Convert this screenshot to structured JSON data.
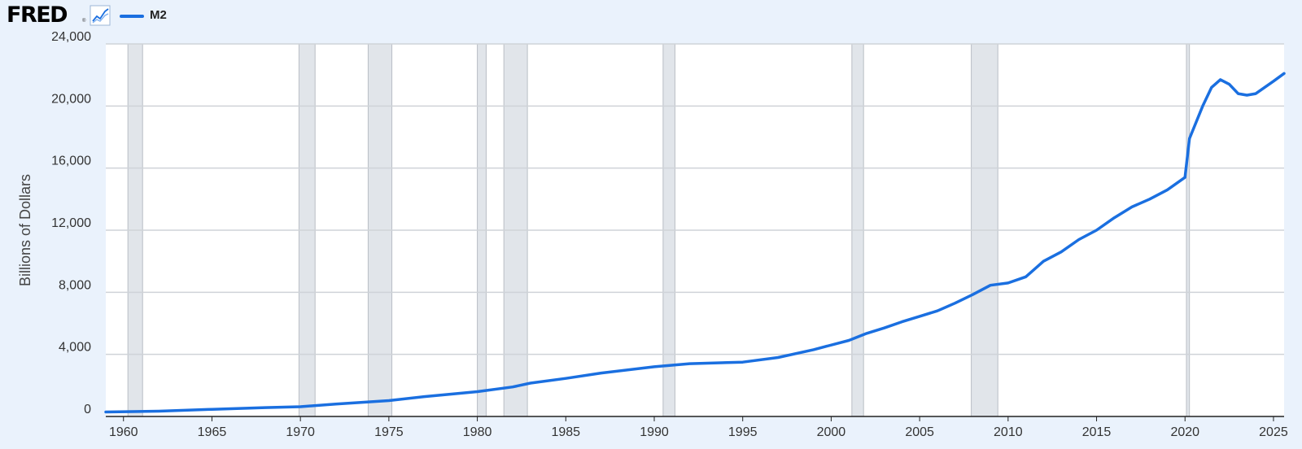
{
  "header": {
    "logo": "FRED",
    "logo_mark": "®",
    "icon": "line-chart-icon",
    "legend_label": "M2"
  },
  "chart_data": {
    "type": "line",
    "title": "",
    "xlabel": "",
    "ylabel": "Billions of Dollars",
    "xlim": [
      1959.0,
      2025.6
    ],
    "ylim": [
      0,
      24000
    ],
    "grid": "horizontal",
    "legend": "top-left",
    "line_color": "#1a6fe0",
    "recession_color": "#e1e5ea",
    "x_ticks": [
      {
        "value": 1960,
        "label": "1960"
      },
      {
        "value": 1965,
        "label": "1965"
      },
      {
        "value": 1970,
        "label": "1970"
      },
      {
        "value": 1975,
        "label": "1975"
      },
      {
        "value": 1980,
        "label": "1980"
      },
      {
        "value": 1985,
        "label": "1985"
      },
      {
        "value": 1990,
        "label": "1990"
      },
      {
        "value": 1995,
        "label": "1995"
      },
      {
        "value": 2000,
        "label": "2000"
      },
      {
        "value": 2005,
        "label": "2005"
      },
      {
        "value": 2010,
        "label": "2010"
      },
      {
        "value": 2015,
        "label": "2015"
      },
      {
        "value": 2020,
        "label": "2020"
      },
      {
        "value": 2025,
        "label": "2025"
      }
    ],
    "y_ticks": [
      {
        "value": 0,
        "label": "0"
      },
      {
        "value": 4000,
        "label": "4,000"
      },
      {
        "value": 8000,
        "label": "8,000"
      },
      {
        "value": 12000,
        "label": "12,000"
      },
      {
        "value": 16000,
        "label": "16,000"
      },
      {
        "value": 20000,
        "label": "20,000"
      },
      {
        "value": 24000,
        "label": "24,000"
      }
    ],
    "recessions": [
      [
        1960.25,
        1961.08
      ],
      [
        1969.92,
        1970.83
      ],
      [
        1973.83,
        1975.17
      ],
      [
        1980.0,
        1980.5
      ],
      [
        1981.5,
        1982.83
      ],
      [
        1990.5,
        1991.17
      ],
      [
        2001.17,
        2001.83
      ],
      [
        2007.92,
        2009.42
      ],
      [
        2020.08,
        2020.25
      ]
    ],
    "series": [
      {
        "name": "M2",
        "x": [
          1959.0,
          1962.0,
          1965.0,
          1968.0,
          1970.0,
          1972.0,
          1975.0,
          1977.0,
          1980.0,
          1982.0,
          1983.0,
          1985.0,
          1987.0,
          1990.0,
          1992.0,
          1995.0,
          1997.0,
          1999.0,
          2001.0,
          2002.0,
          2003.0,
          2004.0,
          2005.0,
          2006.0,
          2007.0,
          2008.0,
          2009.0,
          2010.0,
          2011.0,
          2012.0,
          2013.0,
          2014.0,
          2015.0,
          2016.0,
          2017.0,
          2018.0,
          2019.0,
          2020.0,
          2020.25,
          2020.5,
          2021.0,
          2021.5,
          2022.0,
          2022.5,
          2023.0,
          2023.5,
          2024.0,
          2024.5,
          2025.0,
          2025.6
        ],
        "y": [
          290,
          340,
          460,
          570,
          630,
          800,
          1020,
          1280,
          1600,
          1900,
          2150,
          2450,
          2800,
          3200,
          3400,
          3500,
          3800,
          4300,
          4900,
          5350,
          5700,
          6100,
          6450,
          6800,
          7300,
          7850,
          8450,
          8600,
          9000,
          10000,
          10600,
          11400,
          12000,
          12800,
          13500,
          14000,
          14600,
          15400,
          17900,
          18600,
          20000,
          21200,
          21700,
          21400,
          20800,
          20700,
          20800,
          21200,
          21600,
          22100
        ]
      }
    ]
  }
}
